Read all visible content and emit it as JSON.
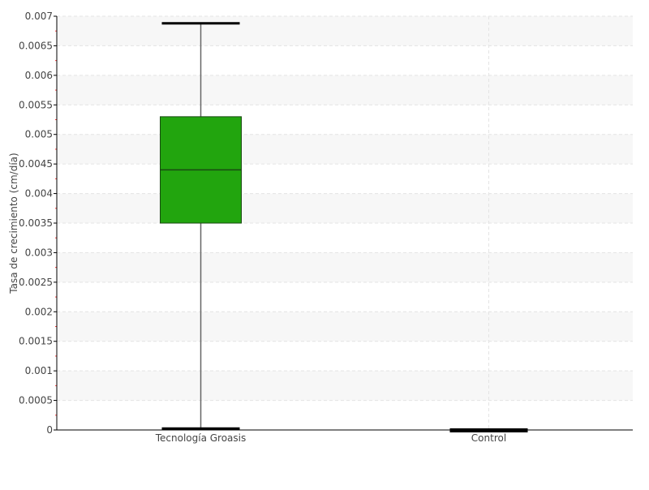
{
  "chart_data": {
    "type": "box",
    "title": "",
    "xlabel": "",
    "ylabel": "Tasa de crecimiento (cm/día)",
    "ylim": [
      0,
      0.007
    ],
    "ytick_step": 0.0005,
    "yticks": [
      "0",
      "0.0005",
      "0.001",
      "0.0015",
      "0.002",
      "0.0025",
      "0.003",
      "0.0035",
      "0.004",
      "0.0045",
      "0.005",
      "0.0055",
      "0.006",
      "0.0065",
      "0.007"
    ],
    "grid": true,
    "categories": [
      "Tecnología Groasis",
      "Control"
    ],
    "boxes": [
      {
        "category": "Tecnología Groasis",
        "min": 1e-05,
        "q1": 0.0035,
        "median": 0.0044,
        "q3": 0.0053,
        "max": 0.00688,
        "color": "#22a50e"
      },
      {
        "category": "Control",
        "min": 0,
        "q1": 0,
        "median": 0,
        "q3": 0,
        "max": 0,
        "color": "#22a50e"
      }
    ],
    "colors": {
      "band": "#f7f7f7",
      "grid": "#e4e4e4",
      "minor_tick": "#ff3b3b",
      "axis": "#000000",
      "box_border": "#1a4a12"
    }
  }
}
